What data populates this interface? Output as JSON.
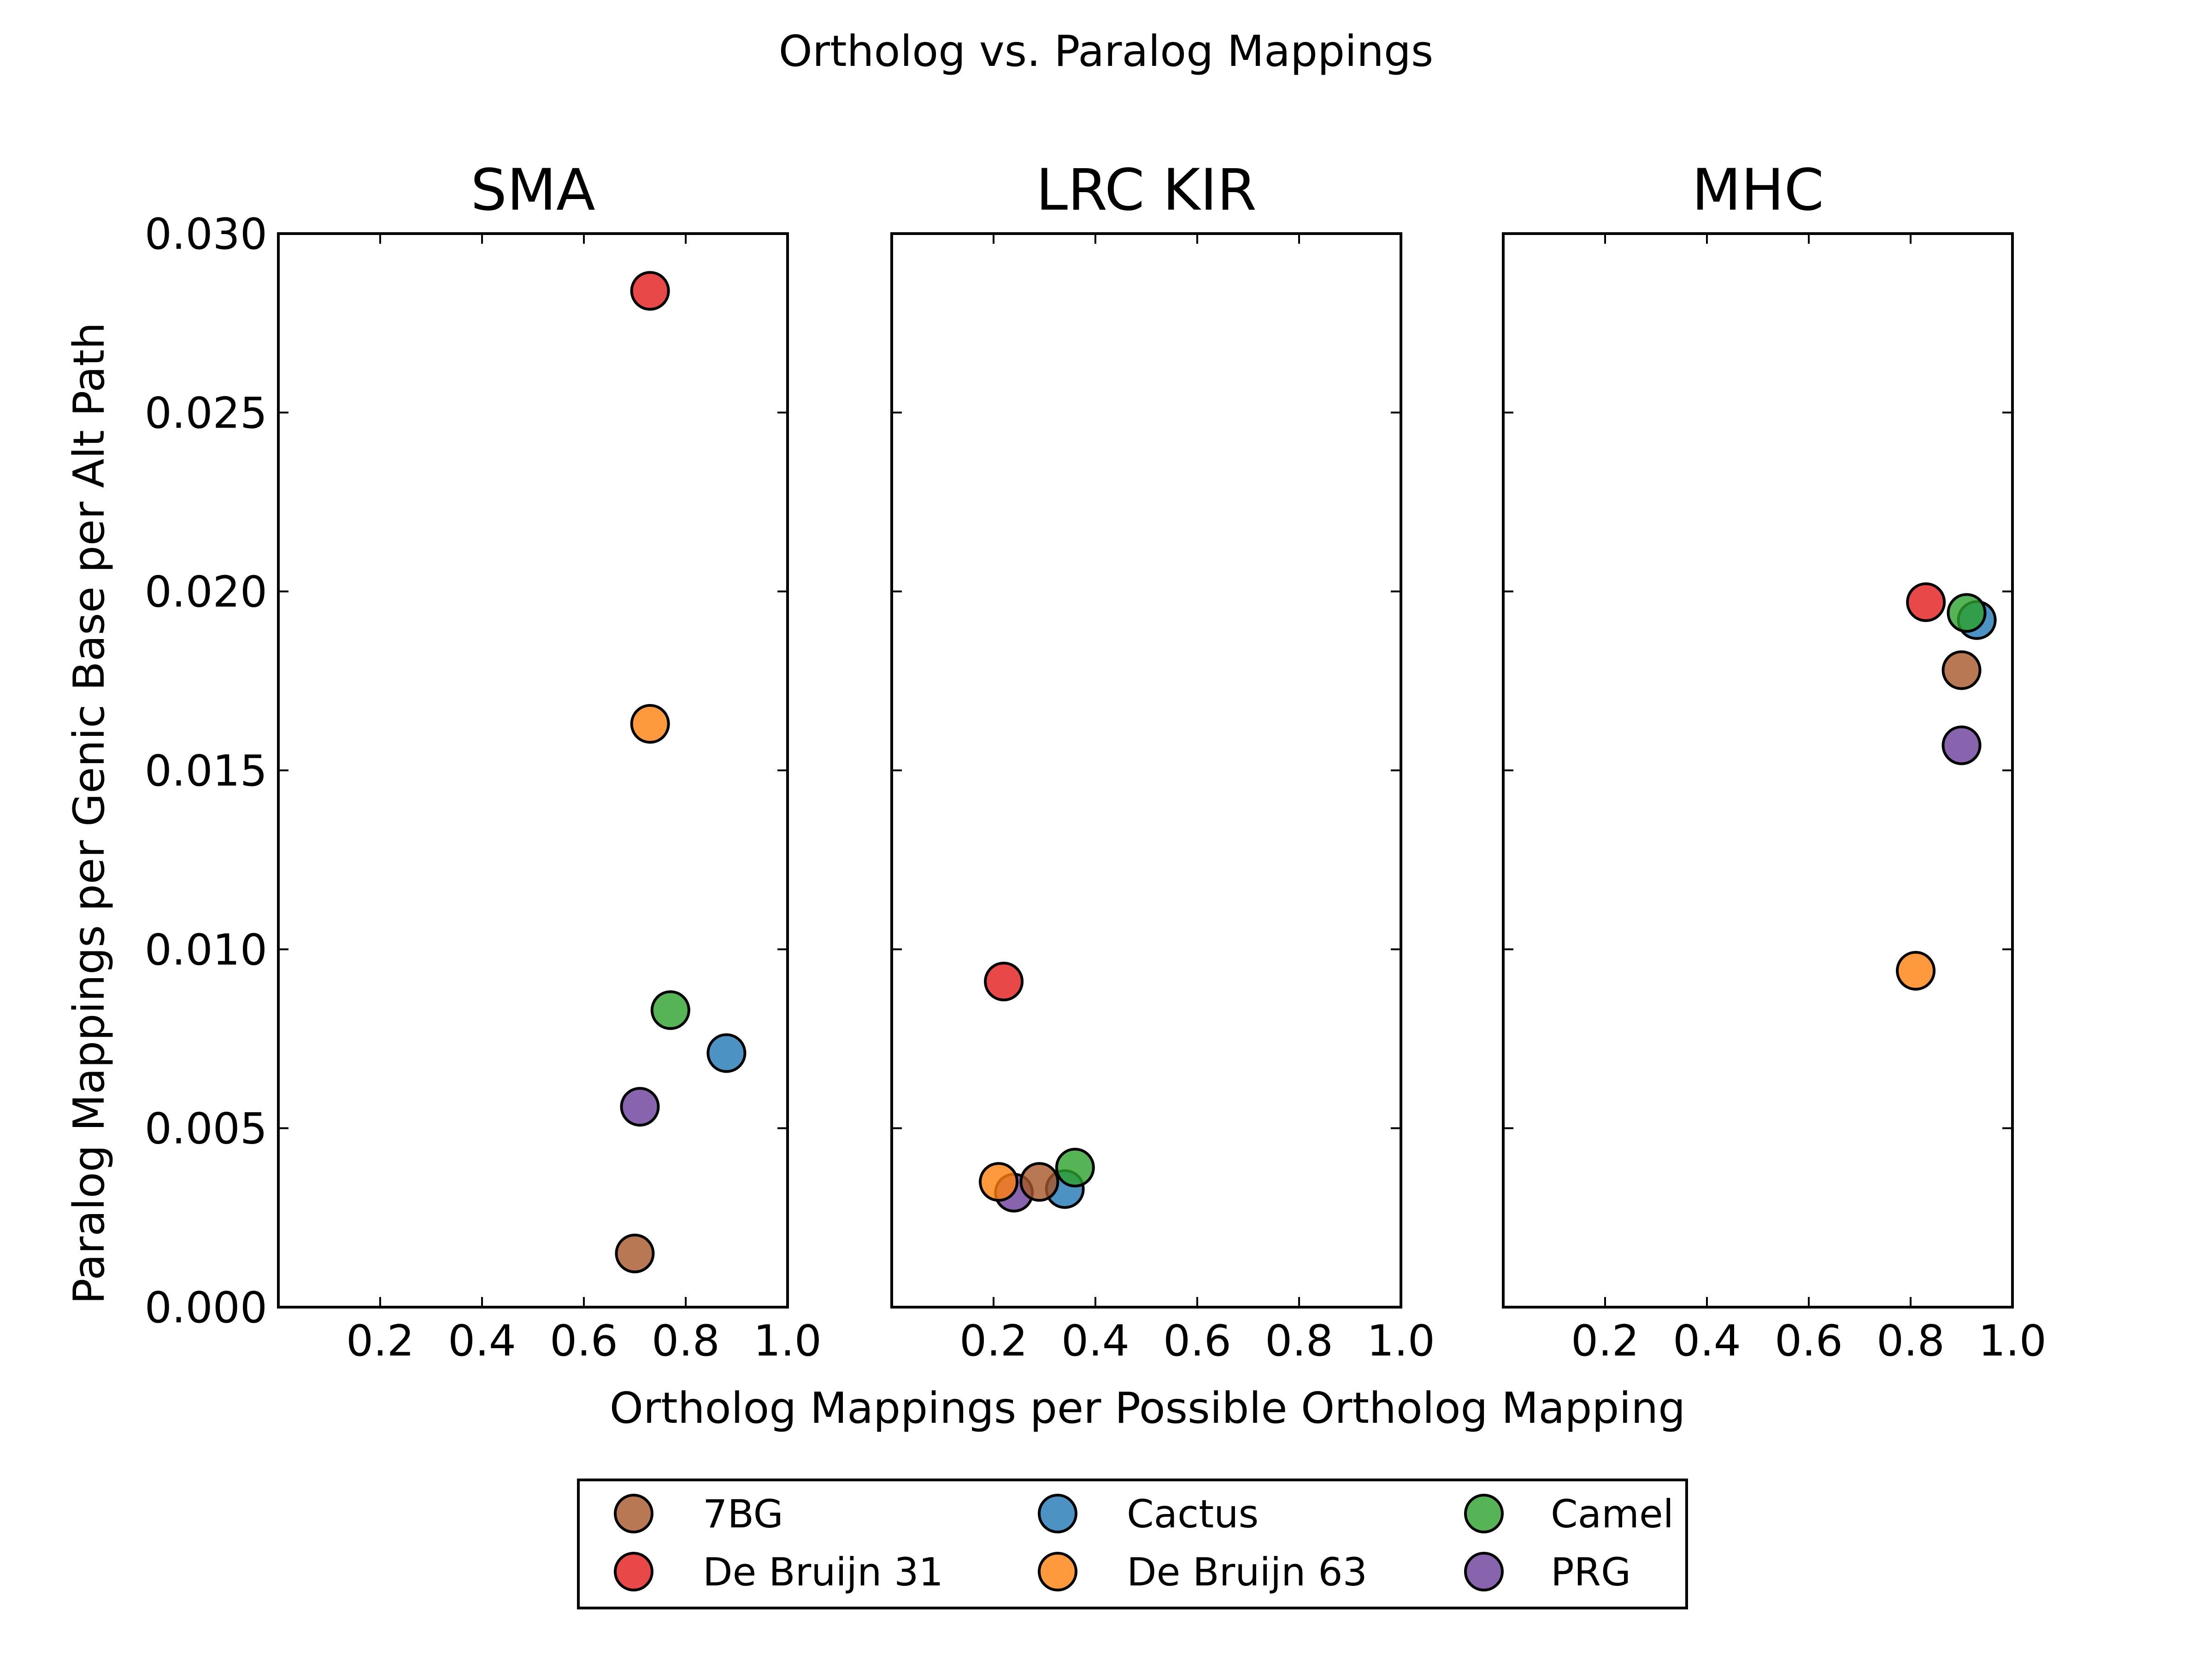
{
  "chart_data": {
    "type": "scatter",
    "title": "Ortholog vs. Paralog Mappings",
    "xlabel": "Ortholog Mappings per Possible Ortholog Mapping",
    "ylabel": "Paralog Mappings per Genic Base per Alt Path",
    "xlim": [
      0,
      1.0
    ],
    "ylim": [
      0,
      0.03
    ],
    "x_ticks": [
      "0.2",
      "0.4",
      "0.6",
      "0.8",
      "1.0"
    ],
    "y_ticks": [
      "0.000",
      "0.005",
      "0.010",
      "0.015",
      "0.020",
      "0.025",
      "0.030"
    ],
    "grid": false,
    "legend_position": "bottom-center",
    "series_colors": {
      "7BG": "#a65628",
      "Cactus": "#1f77b4",
      "Camel": "#2ca02c",
      "De Bruijn 31": "#e41a1c",
      "De Bruijn 63": "#ff7f0e",
      "PRG": "#6a3d9a"
    },
    "panels": [
      {
        "title": "SMA",
        "points": [
          {
            "series": "De Bruijn 31",
            "x": 0.73,
            "y": 0.0284
          },
          {
            "series": "De Bruijn 63",
            "x": 0.73,
            "y": 0.0163
          },
          {
            "series": "Camel",
            "x": 0.77,
            "y": 0.0083
          },
          {
            "series": "Cactus",
            "x": 0.88,
            "y": 0.0071
          },
          {
            "series": "PRG",
            "x": 0.71,
            "y": 0.0056
          },
          {
            "series": "7BG",
            "x": 0.7,
            "y": 0.0015
          }
        ]
      },
      {
        "title": "LRC KIR",
        "points": [
          {
            "series": "De Bruijn 31",
            "x": 0.22,
            "y": 0.0091
          },
          {
            "series": "PRG",
            "x": 0.24,
            "y": 0.0032
          },
          {
            "series": "Cactus",
            "x": 0.34,
            "y": 0.0033
          },
          {
            "series": "De Bruijn 63",
            "x": 0.21,
            "y": 0.0035
          },
          {
            "series": "7BG",
            "x": 0.29,
            "y": 0.0035
          },
          {
            "series": "Camel",
            "x": 0.36,
            "y": 0.0039
          }
        ]
      },
      {
        "title": "MHC",
        "points": [
          {
            "series": "De Bruijn 31",
            "x": 0.83,
            "y": 0.0197
          },
          {
            "series": "Cactus",
            "x": 0.93,
            "y": 0.0192
          },
          {
            "series": "Camel",
            "x": 0.91,
            "y": 0.0194
          },
          {
            "series": "7BG",
            "x": 0.9,
            "y": 0.0178
          },
          {
            "series": "PRG",
            "x": 0.9,
            "y": 0.0157
          },
          {
            "series": "De Bruijn 63",
            "x": 0.81,
            "y": 0.0094
          }
        ]
      }
    ],
    "legend": [
      "7BG",
      "Cactus",
      "Camel",
      "De Bruijn 31",
      "De Bruijn 63",
      "PRG"
    ]
  }
}
